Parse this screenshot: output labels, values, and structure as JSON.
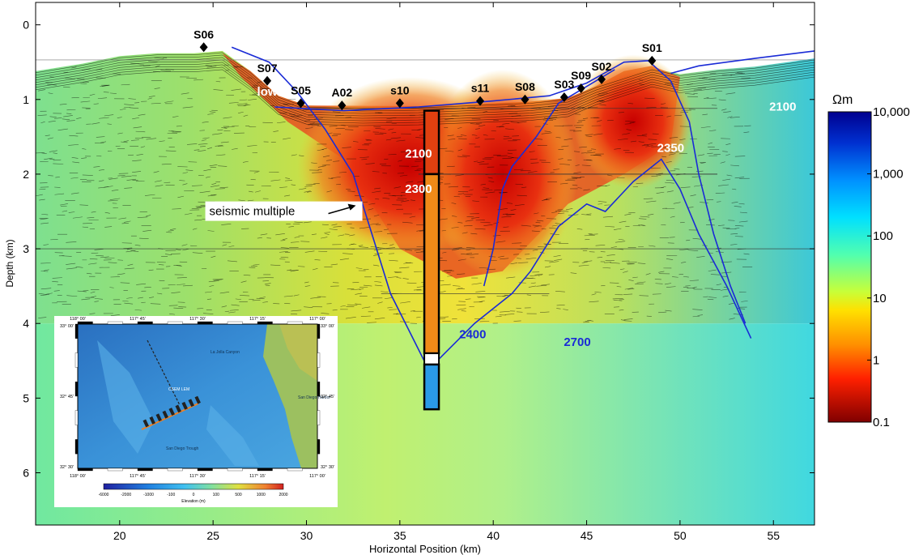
{
  "chart_data": {
    "type": "heatmap",
    "xlabel": "Horizontal Position (km)",
    "ylabel": "Depth (km)",
    "xlim": [
      15.5,
      57.2
    ],
    "ylim": [
      6.7,
      -0.3
    ],
    "x_ticks": [
      20,
      25,
      30,
      35,
      40,
      45,
      50,
      55
    ],
    "y_ticks": [
      0,
      1,
      2,
      3,
      4,
      5,
      6
    ],
    "colorbar": {
      "unit": "Ωm",
      "scale": "log",
      "ticks": [
        {
          "value": 10000,
          "label": "10,000"
        },
        {
          "value": 1000,
          "label": "1,000"
        },
        {
          "value": 100,
          "label": "100"
        },
        {
          "value": 10,
          "label": "10"
        },
        {
          "value": 1,
          "label": "1"
        },
        {
          "value": 0.1,
          "label": "0.1"
        }
      ],
      "range": [
        0.1,
        10000
      ]
    },
    "stations": [
      {
        "name": "S06",
        "x": 24.5,
        "depth": 0.3
      },
      {
        "name": "S07",
        "x": 27.9,
        "depth": 0.75
      },
      {
        "name": "S05",
        "x": 29.7,
        "depth": 1.05
      },
      {
        "name": "A02",
        "x": 31.9,
        "depth": 1.08
      },
      {
        "name": "s10",
        "x": 35.0,
        "depth": 1.05
      },
      {
        "name": "s11",
        "x": 39.3,
        "depth": 1.02
      },
      {
        "name": "S08",
        "x": 41.7,
        "depth": 1.0
      },
      {
        "name": "S03",
        "x": 43.8,
        "depth": 0.97
      },
      {
        "name": "S09",
        "x": 44.7,
        "depth": 0.85
      },
      {
        "name": "S02",
        "x": 45.8,
        "depth": 0.73
      },
      {
        "name": "S01",
        "x": 48.5,
        "depth": 0.48
      }
    ],
    "annotations": [
      {
        "text": "low",
        "x": 27.9,
        "depth": 0.95,
        "color": "#ffffff"
      },
      {
        "text": "2100",
        "x": 36.0,
        "depth": 1.78,
        "color": "#ffffff"
      },
      {
        "text": "2300",
        "x": 36.0,
        "depth": 2.25,
        "color": "#ffffff"
      },
      {
        "text": "2350",
        "x": 49.5,
        "depth": 1.7,
        "color": "#ffffff"
      },
      {
        "text": "2100",
        "x": 55.5,
        "depth": 1.15,
        "color": "#ffffff"
      },
      {
        "text": "2700",
        "x": 28.7,
        "depth": 4.45,
        "color": "#1a2bd6"
      },
      {
        "text": "2400",
        "x": 38.9,
        "depth": 4.2,
        "color": "#1a2bd6"
      },
      {
        "text": "2700",
        "x": 44.5,
        "depth": 4.3,
        "color": "#1a2bd6"
      }
    ],
    "callout": {
      "text": "seismic multiple",
      "x": 24.8,
      "depth": 2.55
    },
    "well": {
      "x": 36.7,
      "top_depth": 1.15,
      "bottom_depth": 5.15
    },
    "inset_map": {
      "lon_ticks": [
        "118° 00'",
        "117° 45'",
        "117° 30'",
        "117° 15'",
        "117° 00'"
      ],
      "lat_ticks": [
        "33° 00'",
        "32° 45'",
        "32° 30'"
      ],
      "places": [
        "La Jolla Canyon",
        "San Diego Harbor",
        "San Diego Trough",
        "CSEM LEM"
      ],
      "colorbar_ticks": [
        "-6000",
        "-2000",
        "-1000",
        "-100",
        "0",
        "100",
        "500",
        "1000",
        "2000"
      ],
      "colorbar_label": "Elevation (m)"
    }
  }
}
